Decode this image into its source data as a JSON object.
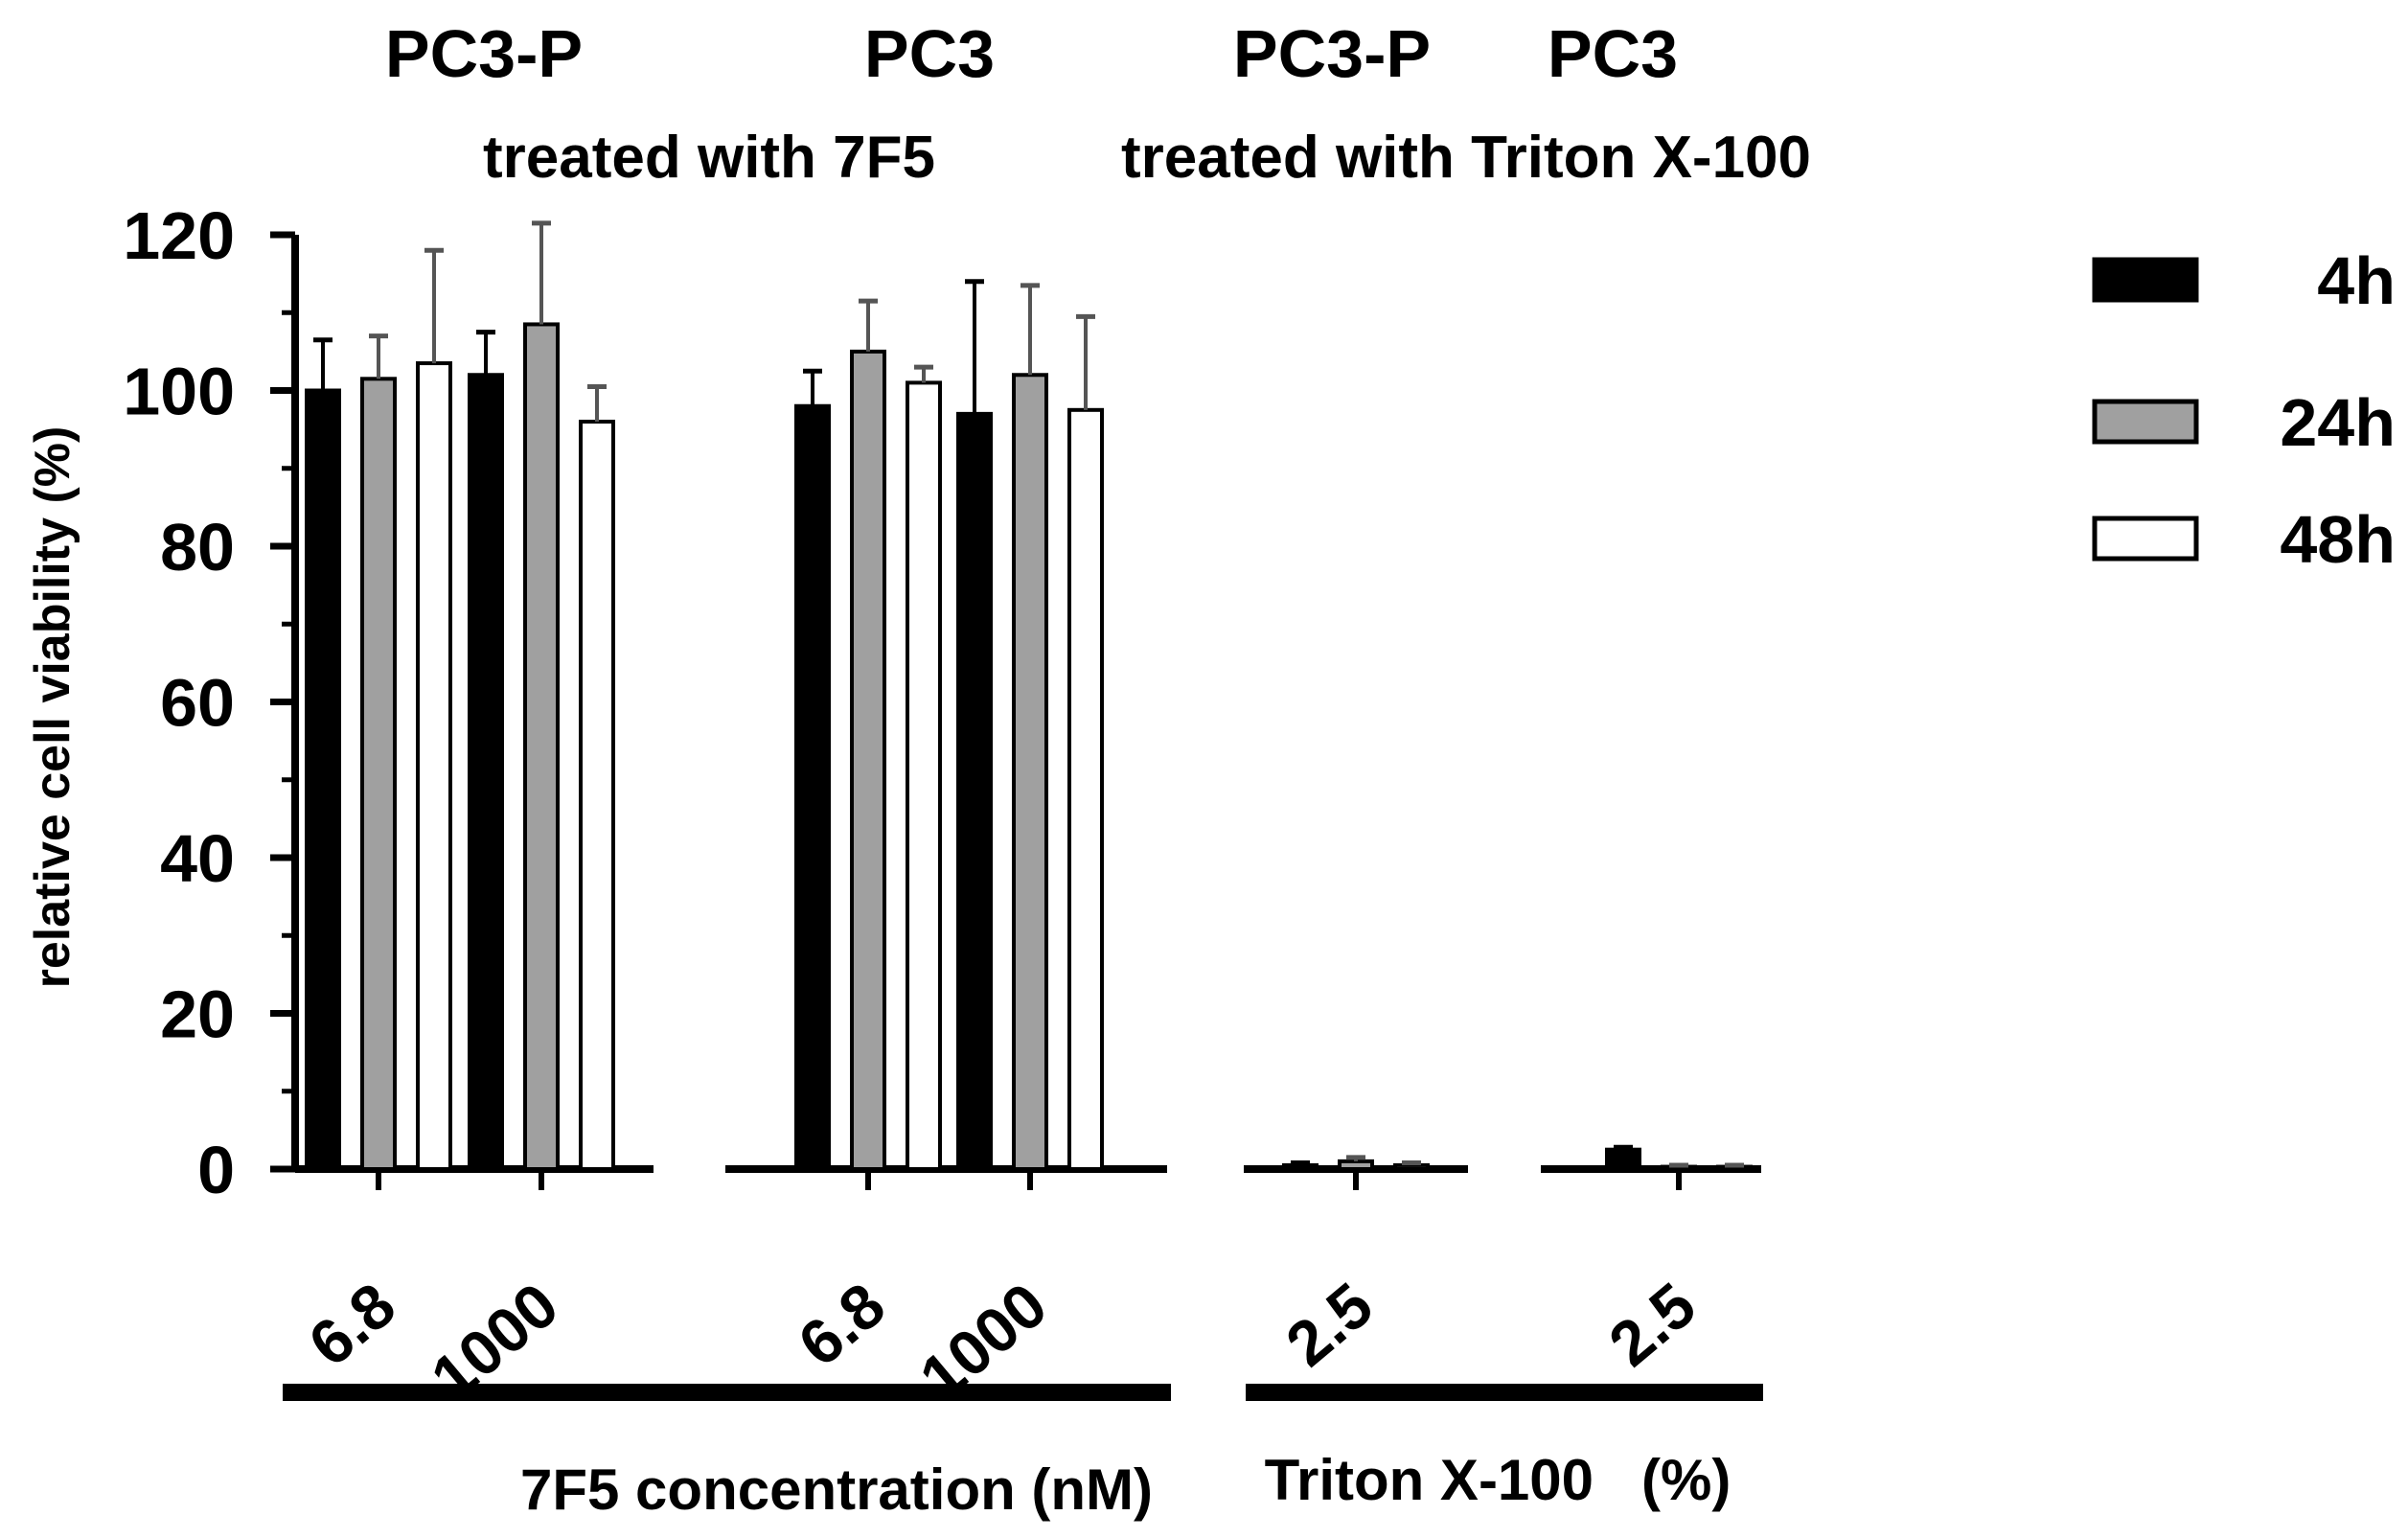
{
  "chart_data": {
    "type": "bar",
    "ylabel": "relative cell viability (%)",
    "ylim": [
      0,
      120
    ],
    "yticks": [
      0,
      20,
      40,
      60,
      80,
      100,
      120
    ],
    "group_titles": [
      "PC3-P",
      "PC3",
      "PC3-P",
      "PC3"
    ],
    "subtitles": [
      "treated with 7F5",
      "treated with Triton X-100"
    ],
    "xlabels": [
      "7F5 concentration (nM)",
      "Triton X-100   (%)"
    ],
    "categories": [
      "6.8",
      "1000",
      "6.8",
      "1000",
      "2.5",
      "2.5"
    ],
    "series": [
      {
        "name": "4h",
        "values": [
          100,
          102,
          98,
          97,
          0.5,
          2.5
        ],
        "errors": [
          6.5,
          5.5,
          4.5,
          17,
          0.3,
          0.3
        ]
      },
      {
        "name": "24h",
        "values": [
          101.5,
          108.5,
          105,
          102,
          1.0,
          0.3
        ],
        "errors": [
          5.5,
          13,
          6.5,
          11.5,
          0.5,
          0.2
        ]
      },
      {
        "name": "48h",
        "values": [
          103.5,
          96,
          101,
          97.5,
          0.5,
          0.3
        ],
        "errors": [
          14.5,
          4.5,
          2,
          12,
          0.3,
          0.2
        ]
      }
    ],
    "legend": [
      {
        "label": "4h",
        "color": "#000000"
      },
      {
        "label": "24h",
        "color": "#a0a0a0"
      },
      {
        "label": "48h",
        "color": "#ffffff"
      }
    ],
    "legend_position": "top-right"
  }
}
